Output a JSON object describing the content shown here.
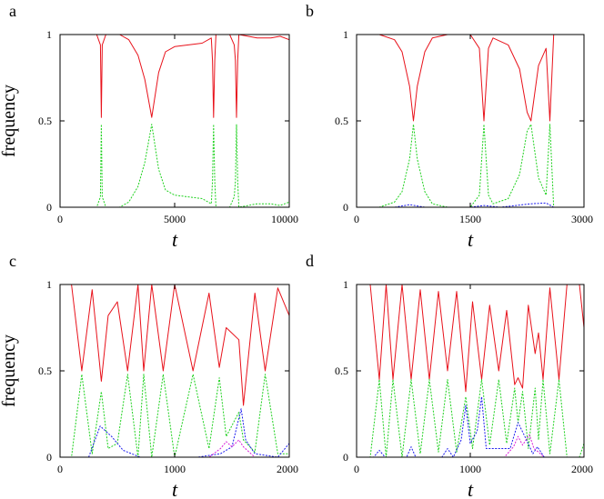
{
  "colors": {
    "red": "#e8121b",
    "green": "#1fd11f",
    "blue": "#1a1aee",
    "magenta": "#d81cd8",
    "frame": "#000000"
  },
  "chart_data": [
    {
      "panel": "a",
      "type": "line",
      "xlabel": "t",
      "ylabel": "frequency",
      "xlim": [
        0,
        10000
      ],
      "ylim": [
        0,
        1
      ],
      "xticks": [
        "0",
        "5000",
        "10000"
      ],
      "yticks": [
        "0",
        "0.5",
        "1"
      ],
      "series": [
        {
          "color": "red",
          "style": "solid",
          "x": [
            0,
            1600,
            1760,
            1800,
            1840,
            2000,
            2600,
            3000,
            3400,
            3700,
            4000,
            4300,
            4600,
            5000,
            5600,
            6200,
            6600,
            6650,
            6700,
            6750,
            6800,
            7400,
            7600,
            7650,
            7700,
            7750,
            7800,
            8600,
            9200,
            9600,
            10000
          ],
          "y": [
            1,
            1,
            0.94,
            0.52,
            0.94,
            1,
            1,
            0.97,
            0.88,
            0.74,
            0.52,
            0.78,
            0.9,
            0.93,
            0.94,
            0.95,
            0.98,
            0.85,
            0.52,
            0.85,
            1,
            1,
            0.94,
            0.85,
            0.52,
            0.85,
            1,
            0.98,
            0.98,
            0.99,
            0.97
          ]
        },
        {
          "color": "green",
          "style": "dotted",
          "x": [
            0,
            1600,
            1760,
            1800,
            1840,
            2000,
            2600,
            3000,
            3400,
            3700,
            4000,
            4300,
            4600,
            5000,
            5600,
            6200,
            6600,
            6650,
            6700,
            6750,
            6800,
            7400,
            7600,
            7650,
            7700,
            7750,
            7800,
            8600,
            9200,
            9600,
            10000
          ],
          "y": [
            0,
            0,
            0.06,
            0.48,
            0.06,
            0,
            0,
            0.03,
            0.12,
            0.26,
            0.48,
            0.22,
            0.1,
            0.07,
            0.06,
            0.05,
            0.02,
            0.15,
            0.48,
            0.15,
            0,
            0,
            0.06,
            0.15,
            0.48,
            0.15,
            0,
            0.02,
            0.02,
            0.01,
            0.03
          ]
        }
      ]
    },
    {
      "panel": "b",
      "type": "line",
      "xlabel": "t",
      "ylabel": "",
      "xlim": [
        0,
        3000
      ],
      "ylim": [
        0,
        1
      ],
      "xticks": [
        "0",
        "1500",
        "3000"
      ],
      "yticks": [
        "0",
        "0.5",
        "1"
      ],
      "series": [
        {
          "color": "red",
          "style": "solid",
          "x": [
            0,
            300,
            500,
            600,
            700,
            750,
            800,
            900,
            1000,
            1200,
            1500,
            1620,
            1680,
            1740,
            1800,
            2000,
            2150,
            2250,
            2300,
            2400,
            2500,
            2550,
            2600,
            2700,
            3000
          ],
          "y": [
            1,
            1,
            0.97,
            0.9,
            0.7,
            0.5,
            0.7,
            0.9,
            0.98,
            1,
            1,
            0.92,
            0.5,
            0.92,
            0.98,
            0.94,
            0.8,
            0.55,
            0.5,
            0.82,
            0.92,
            0.5,
            1,
            1,
            1
          ]
        },
        {
          "color": "green",
          "style": "dotted",
          "x": [
            0,
            300,
            500,
            600,
            700,
            750,
            800,
            900,
            1000,
            1200,
            1500,
            1620,
            1680,
            1740,
            1800,
            2000,
            2150,
            2250,
            2300,
            2400,
            2500,
            2550,
            2600,
            2700,
            3000
          ],
          "y": [
            0,
            0,
            0.03,
            0.09,
            0.28,
            0.48,
            0.28,
            0.09,
            0.02,
            0,
            0,
            0.07,
            0.48,
            0.07,
            0.02,
            0.05,
            0.19,
            0.44,
            0.48,
            0.17,
            0.07,
            0.48,
            0,
            0,
            0
          ]
        },
        {
          "color": "blue",
          "style": "dotted",
          "x": [
            0,
            500,
            700,
            900,
            1500,
            1680,
            1900,
            2100,
            2300,
            2500,
            2600,
            3000
          ],
          "y": [
            0,
            0,
            0.015,
            0,
            0,
            0.01,
            0,
            0.01,
            0.02,
            0.025,
            0,
            0
          ]
        }
      ]
    },
    {
      "panel": "c",
      "type": "line",
      "xlabel": "t",
      "ylabel": "frequency",
      "xlim": [
        0,
        2000
      ],
      "ylim": [
        0,
        1
      ],
      "xticks": [
        "0",
        "1000",
        "2000"
      ],
      "yticks": [
        "0",
        "0.5",
        "1"
      ],
      "series": [
        {
          "color": "red",
          "style": "solid",
          "x": [
            0,
            100,
            190,
            280,
            360,
            420,
            500,
            590,
            680,
            730,
            800,
            900,
            1000,
            1160,
            1300,
            1390,
            1450,
            1560,
            1600,
            1700,
            1790,
            1900,
            2000
          ],
          "y": [
            1,
            1,
            0.5,
            0.97,
            0.44,
            0.82,
            0.9,
            0.5,
            1,
            0.5,
            1,
            0.5,
            1,
            0.5,
            0.95,
            0.52,
            0.75,
            0.68,
            0.3,
            0.95,
            0.5,
            0.98,
            0.82
          ]
        },
        {
          "color": "green",
          "style": "dotted",
          "x": [
            0,
            100,
            190,
            280,
            360,
            420,
            500,
            590,
            680,
            730,
            800,
            900,
            1000,
            1160,
            1300,
            1390,
            1450,
            1560,
            1600,
            1700,
            1790,
            1900,
            2000
          ],
          "y": [
            0,
            0,
            0.48,
            0.02,
            0.38,
            0.05,
            0.08,
            0.48,
            0,
            0.48,
            0,
            0.48,
            0,
            0.48,
            0.05,
            0.46,
            0.12,
            0.26,
            0.1,
            0.03,
            0.48,
            0.02,
            0.02
          ]
        },
        {
          "color": "blue",
          "style": "dotted",
          "x": [
            0,
            250,
            350,
            450,
            550,
            700,
            1200,
            1400,
            1500,
            1580,
            1620,
            1700,
            1900,
            2000
          ],
          "y": [
            0,
            0,
            0.18,
            0.12,
            0.04,
            0,
            0,
            0.02,
            0.06,
            0.28,
            0.1,
            0.02,
            0,
            0.08
          ]
        },
        {
          "color": "magenta",
          "style": "dotted",
          "x": [
            0,
            1300,
            1400,
            1450,
            1500,
            1560,
            1600,
            1700,
            2000
          ],
          "y": [
            0,
            0,
            0.05,
            0.09,
            0.06,
            0.1,
            0.06,
            0,
            0
          ]
        }
      ]
    },
    {
      "panel": "d",
      "type": "line",
      "xlabel": "t",
      "ylabel": "",
      "xlim": [
        0,
        2000
      ],
      "ylim": [
        0,
        1
      ],
      "xticks": [
        "0",
        "1000",
        "2000"
      ],
      "yticks": [
        "0",
        "0.5",
        "1"
      ],
      "series": [
        {
          "color": "red",
          "style": "solid",
          "x": [
            0,
            120,
            200,
            260,
            320,
            400,
            480,
            560,
            640,
            720,
            800,
            880,
            960,
            1020,
            1100,
            1170,
            1250,
            1320,
            1390,
            1420,
            1460,
            1510,
            1570,
            1600,
            1640,
            1700,
            1780,
            1850,
            1960,
            2000
          ],
          "y": [
            1,
            1,
            0.45,
            1,
            0.45,
            1,
            0.45,
            0.97,
            0.45,
            0.96,
            0.5,
            0.96,
            0.38,
            0.9,
            0.45,
            0.88,
            0.5,
            0.85,
            0.42,
            0.46,
            0.4,
            0.88,
            0.6,
            0.72,
            0.45,
            0.98,
            0.45,
            1,
            1,
            0.75
          ]
        },
        {
          "color": "green",
          "style": "dotted",
          "x": [
            0,
            120,
            200,
            260,
            320,
            400,
            480,
            560,
            640,
            720,
            800,
            880,
            960,
            1020,
            1100,
            1170,
            1250,
            1320,
            1390,
            1420,
            1460,
            1510,
            1570,
            1600,
            1640,
            1700,
            1780,
            1850,
            1960,
            2000
          ],
          "y": [
            0,
            0,
            0.45,
            0,
            0.45,
            0,
            0.45,
            0.02,
            0.45,
            0.03,
            0.45,
            0.03,
            0.35,
            0.05,
            0.45,
            0.07,
            0.45,
            0.08,
            0.4,
            0.2,
            0.38,
            0.05,
            0.4,
            0.1,
            0.45,
            0.02,
            0.45,
            0,
            0,
            0.08
          ]
        },
        {
          "color": "blue",
          "style": "dotted",
          "x": [
            0,
            150,
            200,
            250,
            440,
            480,
            520,
            750,
            800,
            850,
            920,
            960,
            1000,
            1060,
            1100,
            1140,
            1350,
            1420,
            1480,
            1550,
            1590,
            1650,
            2000
          ],
          "y": [
            0,
            0,
            0.04,
            0,
            0,
            0.06,
            0,
            0,
            0.05,
            0,
            0.1,
            0.3,
            0.08,
            0.15,
            0.35,
            0.05,
            0.05,
            0.2,
            0.12,
            0.02,
            0.06,
            0,
            0
          ]
        },
        {
          "color": "magenta",
          "style": "dotted",
          "x": [
            0,
            1300,
            1380,
            1420,
            1460,
            1520,
            1560,
            1600,
            1650,
            2000
          ],
          "y": [
            0,
            0,
            0.06,
            0.12,
            0.07,
            0.13,
            0.05,
            0.03,
            0,
            0
          ]
        }
      ]
    }
  ]
}
